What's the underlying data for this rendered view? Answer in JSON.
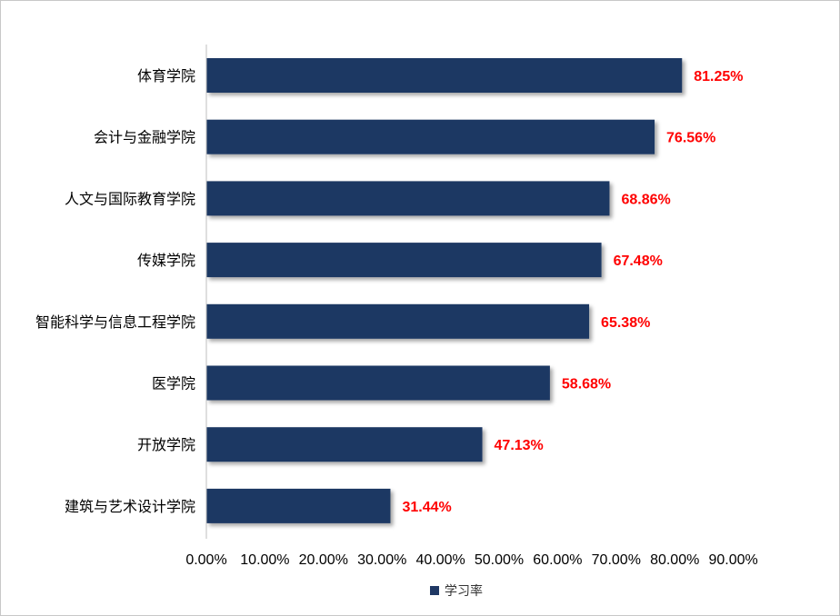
{
  "chart_data": {
    "type": "bar",
    "orientation": "horizontal",
    "categories": [
      "体育学院",
      "会计与金融学院",
      "人文与国际教育学院",
      "传媒学院",
      "智能科学与信息工程学院",
      "医学院",
      "开放学院",
      "建筑与艺术设计学院"
    ],
    "series": [
      {
        "name": "学习率",
        "values": [
          81.25,
          76.56,
          68.86,
          67.48,
          65.38,
          58.68,
          47.13,
          31.44
        ],
        "data_labels": [
          "81.25%",
          "76.56%",
          "68.86%",
          "67.48%",
          "65.38%",
          "58.68%",
          "47.13%",
          "31.44%"
        ]
      }
    ],
    "xlim": [
      0,
      90
    ],
    "x_ticks": [
      0,
      10,
      20,
      30,
      40,
      50,
      60,
      70,
      80,
      90
    ],
    "x_tick_labels": [
      "0.00%",
      "10.00%",
      "20.00%",
      "30.00%",
      "40.00%",
      "50.00%",
      "60.00%",
      "70.00%",
      "80.00%",
      "90.00%"
    ],
    "title": "",
    "xlabel": "",
    "ylabel": "",
    "grid": false,
    "legend": {
      "position": "bottom",
      "entries": [
        "学习率"
      ]
    },
    "colors": {
      "bar": "#1f3864",
      "data_label": "#ff0000",
      "axis": "#bfbfbf"
    }
  }
}
